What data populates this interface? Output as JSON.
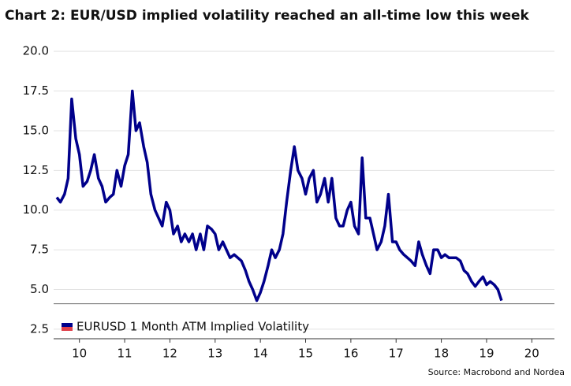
{
  "chart_data": {
    "type": "line",
    "title": "Chart 2: EUR/USD implied volatility reached an all-time low this week",
    "source": "Source: Macrobond and Nordea",
    "x": [
      2010.0,
      2010.08,
      2010.17,
      2010.25,
      2010.33,
      2010.42,
      2010.5,
      2010.58,
      2010.67,
      2010.75,
      2010.83,
      2010.92,
      2011.0,
      2011.08,
      2011.17,
      2011.25,
      2011.33,
      2011.42,
      2011.5,
      2011.58,
      2011.67,
      2011.75,
      2011.83,
      2011.92,
      2012.0,
      2012.08,
      2012.17,
      2012.25,
      2012.33,
      2012.42,
      2012.5,
      2012.58,
      2012.67,
      2012.75,
      2012.83,
      2012.92,
      2013.0,
      2013.08,
      2013.17,
      2013.25,
      2013.33,
      2013.42,
      2013.5,
      2013.58,
      2013.67,
      2013.75,
      2013.83,
      2013.92,
      2014.0,
      2014.08,
      2014.17,
      2014.25,
      2014.33,
      2014.42,
      2014.5,
      2014.58,
      2014.67,
      2014.75,
      2014.83,
      2014.92,
      2015.0,
      2015.08,
      2015.17,
      2015.25,
      2015.33,
      2015.42,
      2015.5,
      2015.58,
      2015.67,
      2015.75,
      2015.83,
      2015.92,
      2016.0,
      2016.08,
      2016.17,
      2016.25,
      2016.33,
      2016.42,
      2016.5,
      2016.58,
      2016.67,
      2016.75,
      2016.83,
      2016.92,
      2017.0,
      2017.08,
      2017.17,
      2017.25,
      2017.33,
      2017.42,
      2017.5,
      2017.58,
      2017.67,
      2017.75,
      2017.83,
      2017.92,
      2018.0,
      2018.08,
      2018.17,
      2018.25,
      2018.33,
      2018.42,
      2018.5,
      2018.58,
      2018.67,
      2018.75,
      2018.83,
      2018.92,
      2019.0,
      2019.08,
      2019.17,
      2019.25,
      2019.33,
      2019.42,
      2019.5,
      2019.58,
      2019.67,
      2019.75,
      2019.83
    ],
    "series": [
      {
        "name": "EURUSD 1 Month ATM Implied Volatility",
        "color": "#00008b",
        "values": [
          10.8,
          10.5,
          11.0,
          12.0,
          17.0,
          14.5,
          13.5,
          11.5,
          11.8,
          12.5,
          13.5,
          12.0,
          11.5,
          10.5,
          10.8,
          11.0,
          12.5,
          11.5,
          12.8,
          13.5,
          17.5,
          15.0,
          15.5,
          14.0,
          13.0,
          11.0,
          10.0,
          9.5,
          9.0,
          10.5,
          10.0,
          8.5,
          9.0,
          8.0,
          8.5,
          8.0,
          8.5,
          7.5,
          8.5,
          7.5,
          9.0,
          8.8,
          8.5,
          7.5,
          8.0,
          7.5,
          7.0,
          7.2,
          7.0,
          6.8,
          6.2,
          5.5,
          5.0,
          4.3,
          4.8,
          5.5,
          6.5,
          7.5,
          7.0,
          7.5,
          8.5,
          10.5,
          12.5,
          14.0,
          12.5,
          12.0,
          11.0,
          12.0,
          12.5,
          10.5,
          11.0,
          12.0,
          10.5,
          12.0,
          9.5,
          9.0,
          9.0,
          10.0,
          10.5,
          9.0,
          8.5,
          13.3,
          9.5,
          9.5,
          8.5,
          7.5,
          8.0,
          9.0,
          11.0,
          8.0,
          8.0,
          7.5,
          7.2,
          7.0,
          6.8,
          6.5,
          8.0,
          7.2,
          6.5,
          6.0,
          7.5,
          7.5,
          7.0,
          7.2,
          7.0,
          7.0,
          7.0,
          6.8,
          6.2,
          6.0,
          5.5,
          5.2,
          5.5,
          5.8,
          5.3,
          5.5,
          5.3,
          5.0,
          4.3
        ]
      }
    ],
    "reference_line": 4.1,
    "xlim": [
      2009.93,
      2021.0
    ],
    "xticks": [
      {
        "value": 2010.5,
        "label": "10"
      },
      {
        "value": 2011.5,
        "label": "11"
      },
      {
        "value": 2012.5,
        "label": "12"
      },
      {
        "value": 2013.5,
        "label": "13"
      },
      {
        "value": 2014.5,
        "label": "14"
      },
      {
        "value": 2015.5,
        "label": "15"
      },
      {
        "value": 2016.5,
        "label": "16"
      },
      {
        "value": 2017.5,
        "label": "17"
      },
      {
        "value": 2018.5,
        "label": "18"
      },
      {
        "value": 2019.5,
        "label": "19"
      },
      {
        "value": 2020.5,
        "label": "20"
      }
    ],
    "ylim": [
      1.9,
      21.0
    ],
    "yticks": [
      2.5,
      {
        "value": 5,
        "label": "5.0"
      },
      7.5,
      {
        "value": 10,
        "label": "10.0"
      },
      12.5,
      {
        "value": 15,
        "label": "15.0"
      },
      17.5,
      {
        "value": 20,
        "label": "20.0"
      }
    ],
    "grid": true
  }
}
